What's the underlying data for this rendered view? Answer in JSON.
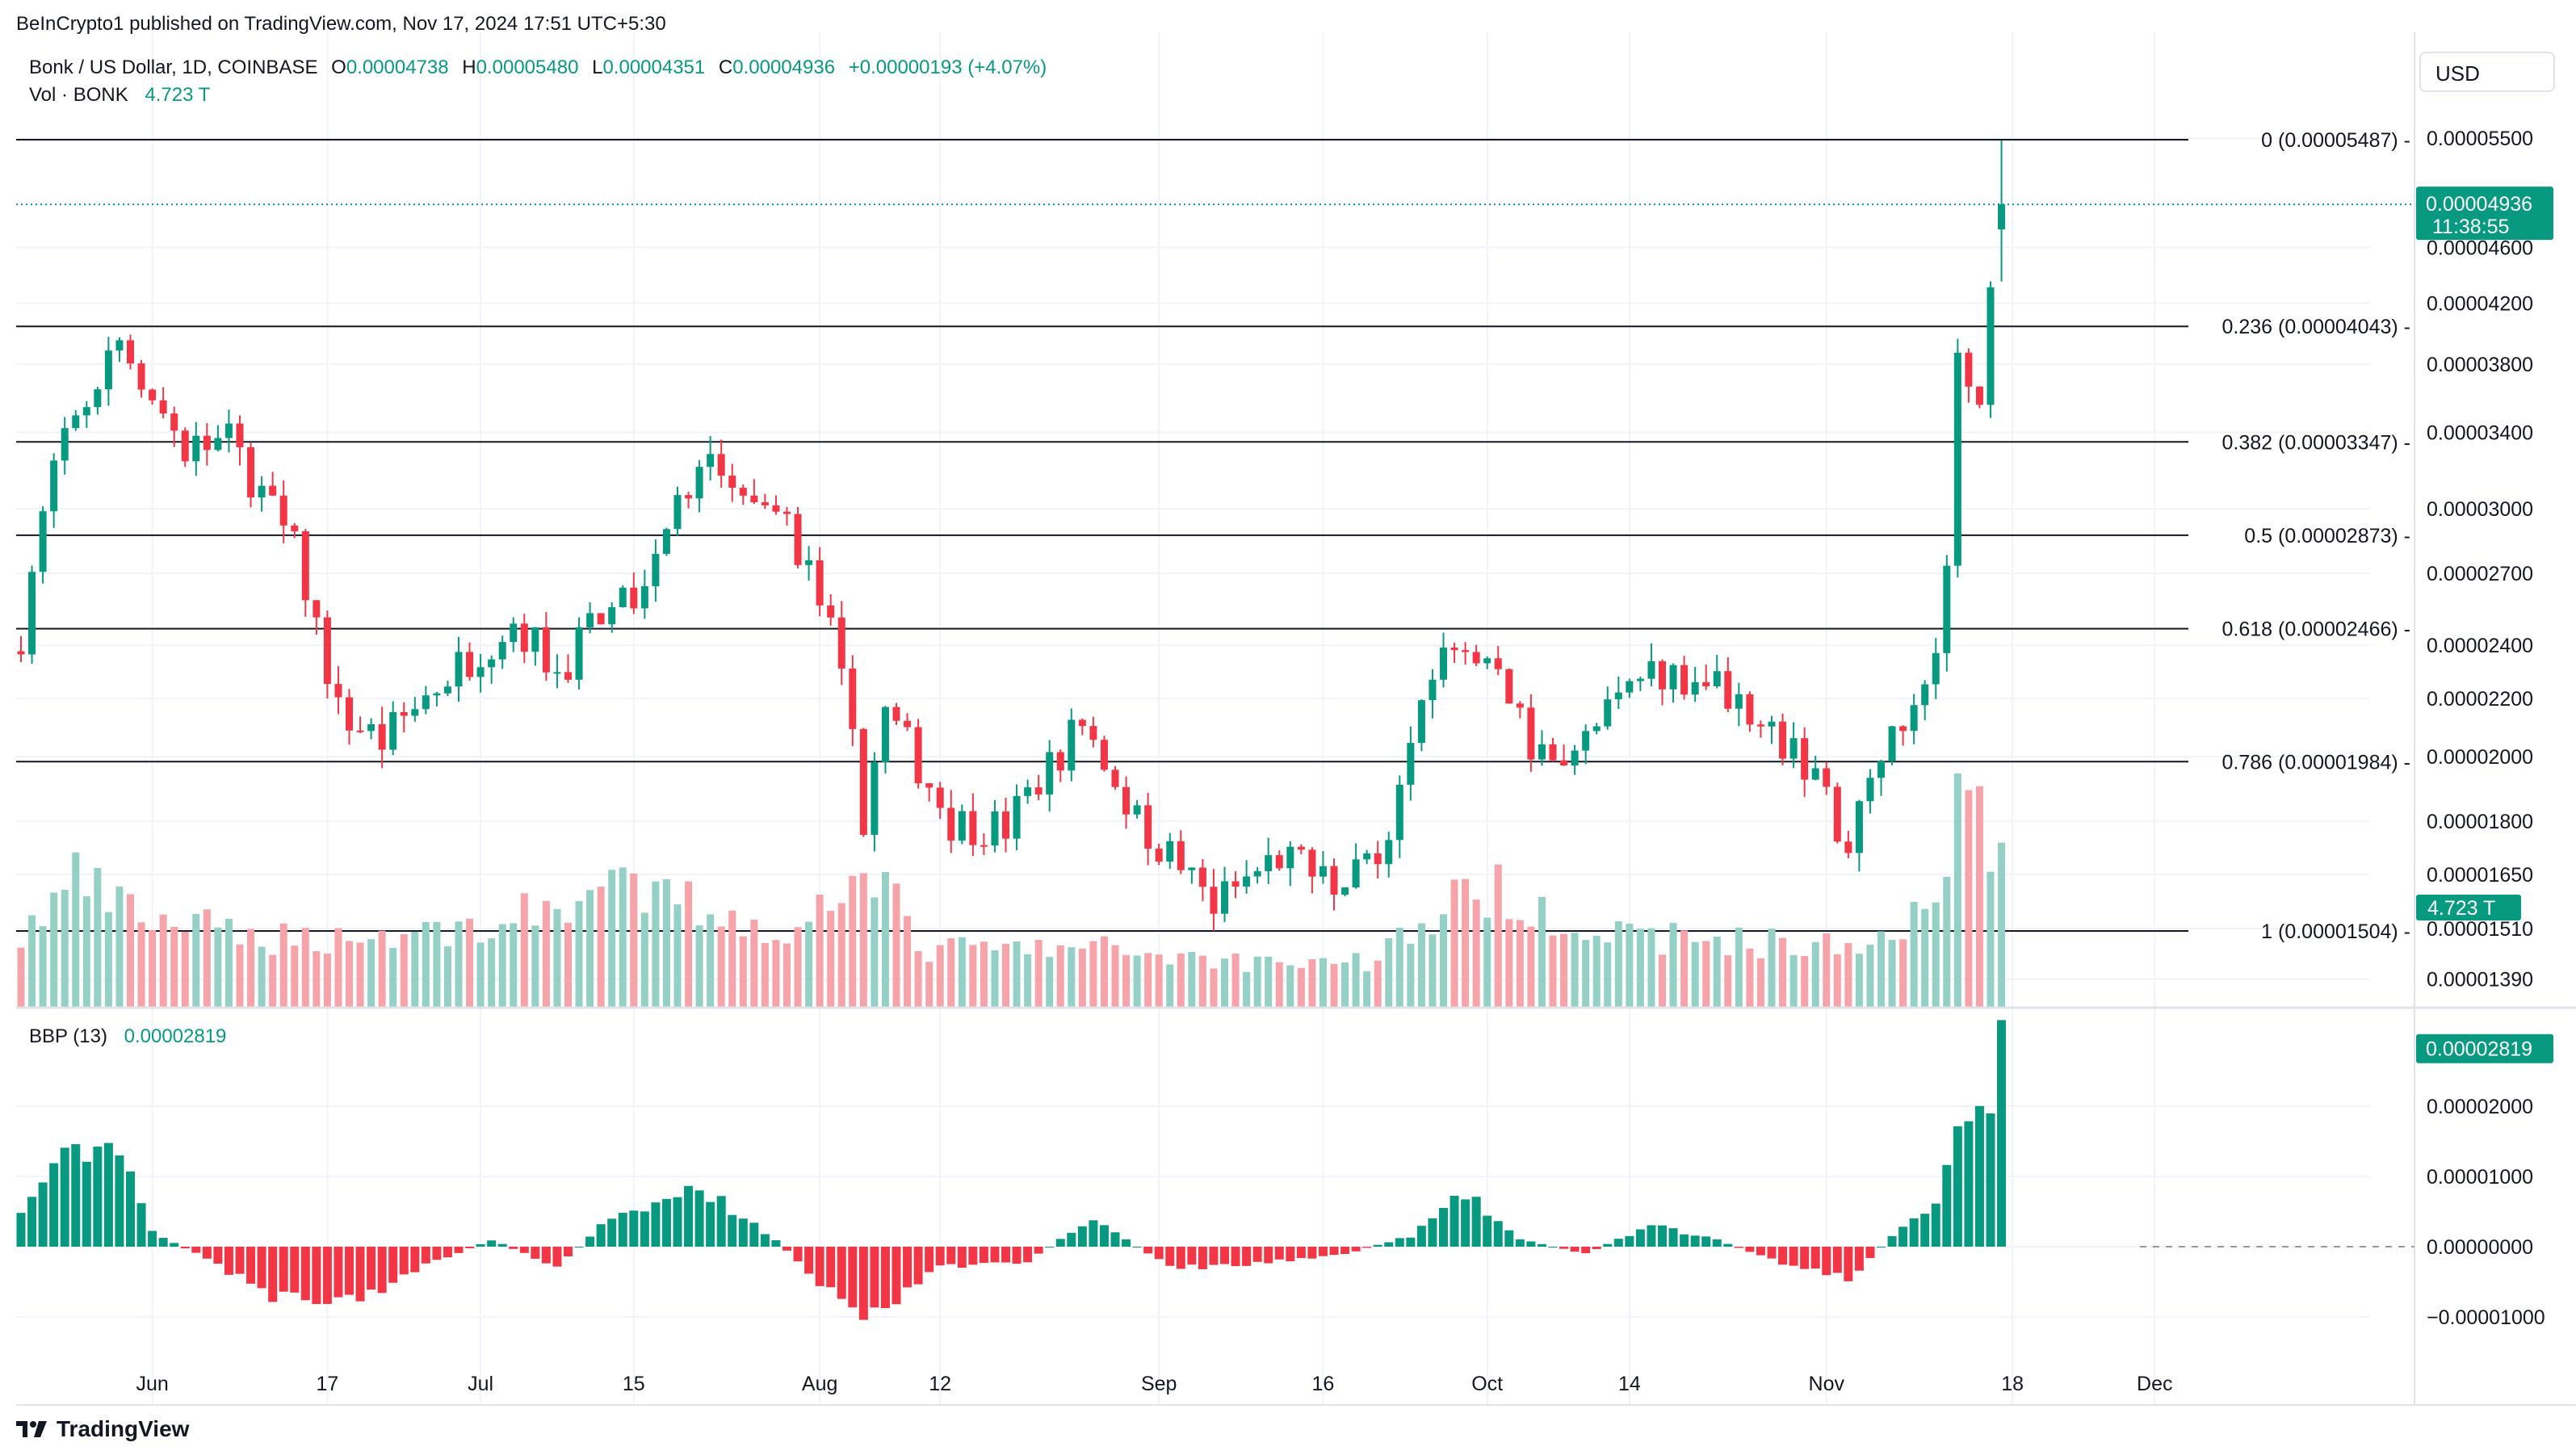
{
  "publisher_line": "BeInCrypto1 published on TradingView.com, Nov 17, 2024 17:51 UTC+5:30",
  "symbol_line": "Bonk / US Dollar, 1D, COINBASE",
  "ohlc": {
    "o_label": "O",
    "o_value": "0.00004738",
    "h_label": "H",
    "h_value": "0.00005480",
    "l_label": "L",
    "l_value": "0.00004351",
    "c_label": "C",
    "c_value": "0.00004936",
    "change": "+0.00000193 (+4.07%)"
  },
  "volume_line": {
    "label": "Vol · BONK",
    "value": "4.723 T"
  },
  "currency_button": "USD",
  "brand": "TradingView",
  "colors": {
    "up": "#089981",
    "down": "#f23645",
    "vol_up": "#95d0c6",
    "vol_down": "#f6a4aa",
    "grid": "#f0f3fa"
  },
  "chart_data": {
    "type": "candlestick",
    "symbol": "Bonk / US Dollar, 1D, COINBASE",
    "price_axis": {
      "scale": "log",
      "ticks": [
        "0.00005500",
        "0.00004600",
        "0.00004200",
        "0.00003800",
        "0.00003400",
        "0.00003000",
        "0.00002700",
        "0.00002400",
        "0.00002200",
        "0.00002000",
        "0.00001800",
        "0.00001650",
        "0.00001510",
        "0.00001390"
      ]
    },
    "x_ticks": [
      "Jun",
      "17",
      "Jul",
      "15",
      "Aug",
      "12",
      "Sep",
      "16",
      "Oct",
      "14",
      "Nov",
      "18",
      "Dec"
    ],
    "x_tick_dates": [
      "2024-06-01",
      "2024-06-17",
      "2024-07-01",
      "2024-07-15",
      "2024-08-01",
      "2024-08-12",
      "2024-09-01",
      "2024-09-16",
      "2024-10-01",
      "2024-10-14",
      "2024-11-01",
      "2024-11-18",
      "2024-12-01"
    ],
    "fib_levels": [
      {
        "ratio": "0",
        "price": 5.487e-05,
        "label": "0 (0.00005487)"
      },
      {
        "ratio": "0.236",
        "price": 4.043e-05,
        "label": "0.236 (0.00004043)"
      },
      {
        "ratio": "0.382",
        "price": 3.347e-05,
        "label": "0.382 (0.00003347)"
      },
      {
        "ratio": "0.5",
        "price": 2.873e-05,
        "label": "0.5 (0.00002873)"
      },
      {
        "ratio": "0.618",
        "price": 2.466e-05,
        "label": "0.618 (0.00002466)"
      },
      {
        "ratio": "0.786",
        "price": 1.984e-05,
        "label": "0.786 (0.00001984)"
      },
      {
        "ratio": "1",
        "price": 1.504e-05,
        "label": "1 (0.00001504)"
      }
    ],
    "last_price": {
      "value": "0.00004936",
      "countdown": "11:38:55"
    },
    "volume_last_label": "4.723 T",
    "indicator": {
      "name": "BBP (13)",
      "value": "0.00002819",
      "axis_ticks": [
        "0.00002000",
        "0.00001000",
        "0.00000000",
        "−0.00001000"
      ]
    },
    "price_waypoints": [
      {
        "date": "2024-05-20",
        "price": 2.45e-05
      },
      {
        "date": "2024-05-23",
        "price": 3.2e-05
      },
      {
        "date": "2024-05-29",
        "price": 3.95e-05
      },
      {
        "date": "2024-06-04",
        "price": 3.3e-05
      },
      {
        "date": "2024-06-08",
        "price": 3.35e-05
      },
      {
        "date": "2024-06-14",
        "price": 2.8e-05
      },
      {
        "date": "2024-06-18",
        "price": 2.15e-05
      },
      {
        "date": "2024-06-22",
        "price": 2.05e-05
      },
      {
        "date": "2024-06-27",
        "price": 2.25e-05
      },
      {
        "date": "2024-07-04",
        "price": 2.5e-05
      },
      {
        "date": "2024-07-08",
        "price": 2.3e-05
      },
      {
        "date": "2024-07-12",
        "price": 2.5e-05
      },
      {
        "date": "2024-07-16",
        "price": 2.6e-05
      },
      {
        "date": "2024-07-21",
        "price": 3.25e-05
      },
      {
        "date": "2024-07-25",
        "price": 3e-05
      },
      {
        "date": "2024-07-29",
        "price": 2.95e-05
      },
      {
        "date": "2024-08-02",
        "price": 2.45e-05
      },
      {
        "date": "2024-08-05",
        "price": 1.82e-05
      },
      {
        "date": "2024-08-07",
        "price": 2.15e-05
      },
      {
        "date": "2024-08-13",
        "price": 1.8e-05
      },
      {
        "date": "2024-08-18",
        "price": 1.78e-05
      },
      {
        "date": "2024-08-25",
        "price": 2.12e-05
      },
      {
        "date": "2024-08-30",
        "price": 1.8e-05
      },
      {
        "date": "2024-09-06",
        "price": 1.57e-05
      },
      {
        "date": "2024-09-12",
        "price": 1.7e-05
      },
      {
        "date": "2024-09-18",
        "price": 1.6e-05
      },
      {
        "date": "2024-09-22",
        "price": 1.78e-05
      },
      {
        "date": "2024-09-27",
        "price": 2.35e-05
      },
      {
        "date": "2024-10-02",
        "price": 2.36e-05
      },
      {
        "date": "2024-10-05",
        "price": 2e-05
      },
      {
        "date": "2024-10-10",
        "price": 2.05e-05
      },
      {
        "date": "2024-10-16",
        "price": 2.32e-05
      },
      {
        "date": "2024-10-22",
        "price": 2.25e-05
      },
      {
        "date": "2024-10-27",
        "price": 2.1e-05
      },
      {
        "date": "2024-11-01",
        "price": 1.85e-05
      },
      {
        "date": "2024-11-03",
        "price": 1.72e-05
      },
      {
        "date": "2024-11-07",
        "price": 2.1e-05
      },
      {
        "date": "2024-11-10",
        "price": 2.2e-05
      },
      {
        "date": "2024-11-12",
        "price": 2.7e-05
      },
      {
        "date": "2024-11-13",
        "price": 3.75e-05
      },
      {
        "date": "2024-11-15",
        "price": 3.55e-05
      },
      {
        "date": "2024-11-17",
        "price": 4.936e-05
      }
    ],
    "volume_waypoints": [
      {
        "date": "2024-05-20",
        "v": 0.3
      },
      {
        "date": "2024-05-25",
        "v": 0.55
      },
      {
        "date": "2024-05-30",
        "v": 0.4
      },
      {
        "date": "2024-06-10",
        "v": 0.3
      },
      {
        "date": "2024-06-20",
        "v": 0.3
      },
      {
        "date": "2024-07-02",
        "v": 0.35
      },
      {
        "date": "2024-07-12",
        "v": 0.5
      },
      {
        "date": "2024-07-20",
        "v": 0.45
      },
      {
        "date": "2024-07-30",
        "v": 0.3
      },
      {
        "date": "2024-08-05",
        "v": 0.7
      },
      {
        "date": "2024-08-10",
        "v": 0.25
      },
      {
        "date": "2024-08-28",
        "v": 0.25
      },
      {
        "date": "2024-09-08",
        "v": 0.2
      },
      {
        "date": "2024-09-20",
        "v": 0.2
      },
      {
        "date": "2024-09-28",
        "v": 0.45
      },
      {
        "date": "2024-10-03",
        "v": 0.5
      },
      {
        "date": "2024-10-12",
        "v": 0.3
      },
      {
        "date": "2024-10-20",
        "v": 0.3
      },
      {
        "date": "2024-11-04",
        "v": 0.25
      },
      {
        "date": "2024-11-10",
        "v": 0.45
      },
      {
        "date": "2024-11-14",
        "v": 1.0
      },
      {
        "date": "2024-11-17",
        "v": 0.65
      }
    ],
    "bbp_waypoints": [
      {
        "date": "2024-05-20",
        "v": 4.5e-06
      },
      {
        "date": "2024-05-23",
        "v": 1.2e-05
      },
      {
        "date": "2024-05-29",
        "v": 1.5e-05
      },
      {
        "date": "2024-06-01",
        "v": 2e-06
      },
      {
        "date": "2024-06-05",
        "v": -1e-06
      },
      {
        "date": "2024-06-12",
        "v": -7e-06
      },
      {
        "date": "2024-06-20",
        "v": -7.5e-06
      },
      {
        "date": "2024-06-27",
        "v": -2e-06
      },
      {
        "date": "2024-07-02",
        "v": 1e-06
      },
      {
        "date": "2024-07-08",
        "v": -3e-06
      },
      {
        "date": "2024-07-12",
        "v": 3e-06
      },
      {
        "date": "2024-07-21",
        "v": 8.5e-06
      },
      {
        "date": "2024-07-28",
        "v": 1e-06
      },
      {
        "date": "2024-08-05",
        "v": -1.1e-05
      },
      {
        "date": "2024-08-12",
        "v": -3e-06
      },
      {
        "date": "2024-08-20",
        "v": -2e-06
      },
      {
        "date": "2024-08-26",
        "v": 4e-06
      },
      {
        "date": "2024-09-02",
        "v": -3e-06
      },
      {
        "date": "2024-09-10",
        "v": -2.5e-06
      },
      {
        "date": "2024-09-18",
        "v": -1e-06
      },
      {
        "date": "2024-09-24",
        "v": 1.5e-06
      },
      {
        "date": "2024-09-29",
        "v": 7.5e-06
      },
      {
        "date": "2024-10-04",
        "v": 1e-06
      },
      {
        "date": "2024-10-10",
        "v": -1e-06
      },
      {
        "date": "2024-10-16",
        "v": 3e-06
      },
      {
        "date": "2024-10-22",
        "v": 1e-06
      },
      {
        "date": "2024-10-28",
        "v": -2.5e-06
      },
      {
        "date": "2024-11-03",
        "v": -4.5e-06
      },
      {
        "date": "2024-11-07",
        "v": 1.5e-06
      },
      {
        "date": "2024-11-11",
        "v": 6e-06
      },
      {
        "date": "2024-11-13",
        "v": 1.6e-05
      },
      {
        "date": "2024-11-16",
        "v": 2.2e-05
      },
      {
        "date": "2024-11-17",
        "v": 2.819e-05
      }
    ]
  }
}
